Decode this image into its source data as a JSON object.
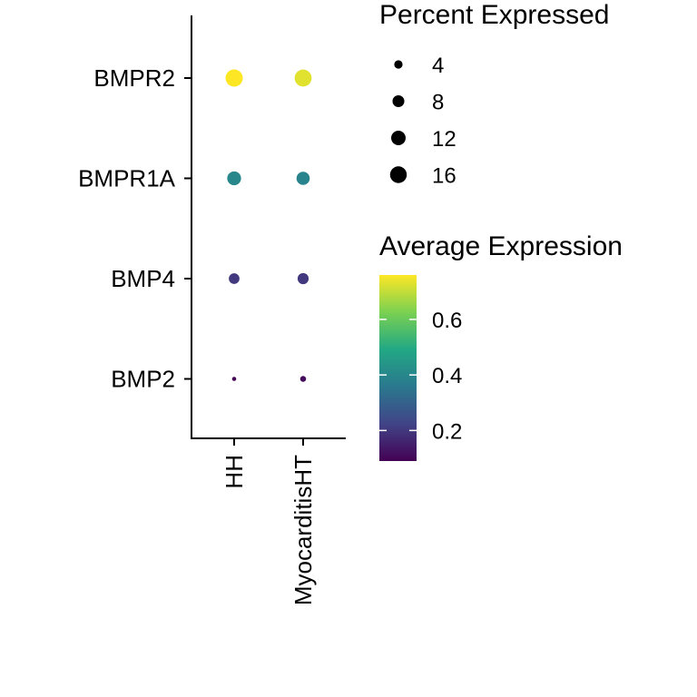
{
  "chart_data": {
    "type": "dot",
    "x_categories": [
      "HH",
      "MyocarditisHT"
    ],
    "y_categories": [
      "BMP2",
      "BMP4",
      "BMPR1A",
      "BMPR2"
    ],
    "points": [
      {
        "gene": "BMPR2",
        "group": "HH",
        "avg_expression": 0.76,
        "pct_expressed": 17.0
      },
      {
        "gene": "BMPR2",
        "group": "MyocarditisHT",
        "avg_expression": 0.73,
        "pct_expressed": 16.5
      },
      {
        "gene": "BMPR1A",
        "group": "HH",
        "avg_expression": 0.4,
        "pct_expressed": 11.0
      },
      {
        "gene": "BMPR1A",
        "group": "MyocarditisHT",
        "avg_expression": 0.39,
        "pct_expressed": 10.0
      },
      {
        "gene": "BMP4",
        "group": "HH",
        "avg_expression": 0.2,
        "pct_expressed": 6.5
      },
      {
        "gene": "BMP4",
        "group": "MyocarditisHT",
        "avg_expression": 0.2,
        "pct_expressed": 7.0
      },
      {
        "gene": "BMP2",
        "group": "HH",
        "avg_expression": 0.09,
        "pct_expressed": 1.0
      },
      {
        "gene": "BMP2",
        "group": "MyocarditisHT",
        "avg_expression": 0.11,
        "pct_expressed": 2.0
      }
    ],
    "size_legend": {
      "title": "Percent Expressed",
      "breaks": [
        4,
        8,
        12,
        16
      ],
      "labels": [
        "4",
        "8",
        "12",
        "16"
      ]
    },
    "color_legend": {
      "title": "Average Expression",
      "range": [
        0.09,
        0.76
      ],
      "breaks": [
        0.2,
        0.4,
        0.6
      ],
      "labels": [
        "0.2",
        "0.4",
        "0.6"
      ],
      "palette": "viridis",
      "stops": [
        "#440154",
        "#414487",
        "#2a788e",
        "#22a884",
        "#7ad151",
        "#fde725"
      ]
    },
    "size_range": [
      0,
      17
    ]
  }
}
